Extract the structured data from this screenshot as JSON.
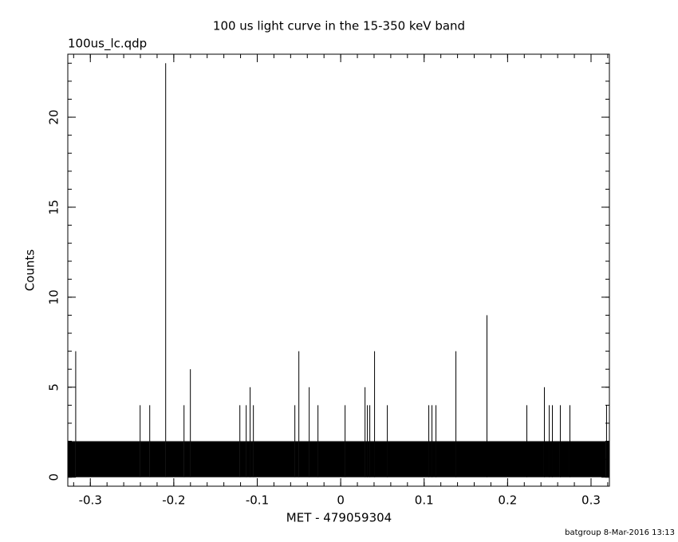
{
  "chart_data": {
    "type": "histogram",
    "title": "100 us light curve in the 15-350 keV band",
    "subtitle": "100us_lc.qdp",
    "x_label": "MET - 479059304",
    "y_label": "Counts",
    "footer": "batgroup  8-Mar-2016 13:13",
    "color": "#000000",
    "xlim": [
      -0.327,
      0.322
    ],
    "ylim": [
      -0.5,
      23.5
    ],
    "xticks": [
      -0.3,
      -0.2,
      -0.1,
      0,
      0.1,
      0.2,
      0.3
    ],
    "yticks": [
      0,
      5,
      10,
      15,
      20
    ],
    "bins": [
      -0.327,
      -0.318,
      -0.3179,
      -0.2408,
      -0.2407,
      -0.2293,
      -0.2292,
      -0.2102,
      -0.2101,
      -0.1882,
      -0.1881,
      -0.1806,
      -0.1805,
      -0.1213,
      -0.1212,
      -0.1137,
      -0.1136,
      -0.109,
      -0.1089,
      -0.1051,
      -0.105,
      -0.0554,
      -0.0553,
      -0.0506,
      -0.0505,
      -0.0382,
      -0.0381,
      -0.0277,
      -0.0276,
      0.0048,
      0.0049,
      0.0287,
      0.0288,
      0.0315,
      0.0316,
      0.0344,
      0.0345,
      0.0401,
      0.0402,
      0.0554,
      0.0555,
      0.1051,
      0.1052,
      0.1089,
      0.109,
      0.1137,
      0.1138,
      0.1376,
      0.1377,
      0.1748,
      0.1749,
      0.2226,
      0.2227,
      0.2436,
      0.2437,
      0.2494,
      0.2495,
      0.2532,
      0.2533,
      0.2627,
      0.2628,
      0.2742,
      0.2743,
      0.3181,
      0.3182,
      0.322
    ],
    "counts": [
      2,
      7,
      2,
      4,
      2,
      4,
      2,
      23,
      2,
      4,
      2,
      6,
      2,
      4,
      2,
      4,
      2,
      5,
      2,
      4,
      2,
      4,
      2,
      7,
      2,
      5,
      2,
      4,
      2,
      4,
      2,
      5,
      2,
      4,
      2,
      4,
      2,
      7,
      2,
      4,
      2,
      4,
      2,
      4,
      2,
      4,
      2,
      7,
      2,
      9,
      2,
      4,
      2,
      5,
      2,
      4,
      2,
      4,
      2,
      4,
      2,
      4,
      2,
      4,
      2
    ]
  }
}
